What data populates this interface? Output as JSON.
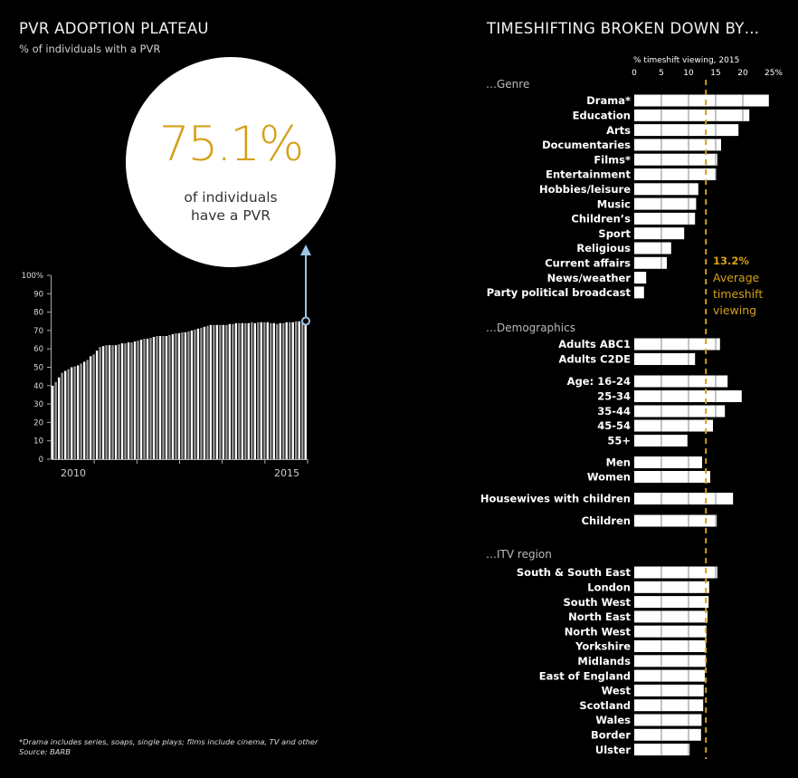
{
  "chart_data": [
    {
      "type": "bar",
      "title": "PVR ADOPTION PLATEAU",
      "subtitle": "% of individuals with a PVR",
      "ylabel": "% of individuals with a PVR",
      "ylim": [
        0,
        100
      ],
      "yticks": [
        "0",
        "10",
        "20",
        "30",
        "40",
        "50",
        "60",
        "70",
        "80",
        "90",
        "100%"
      ],
      "xtick_labels": [
        "2010",
        "2015"
      ],
      "grid": false,
      "values": [
        40,
        42,
        44.5,
        47,
        48,
        49,
        50,
        50.5,
        51,
        52,
        53,
        54,
        56,
        57,
        59,
        61,
        61.5,
        62,
        62,
        62,
        62,
        62.5,
        63,
        63,
        63.5,
        63.5,
        64,
        64.5,
        65,
        65.5,
        65.5,
        66,
        66.5,
        67,
        67,
        67,
        67,
        67.5,
        68,
        68.5,
        68.5,
        69,
        69,
        69.5,
        70,
        70.5,
        71,
        71.5,
        72,
        72.5,
        73,
        73,
        73,
        73,
        73,
        73,
        73.5,
        73.5,
        74,
        74,
        74,
        74,
        74,
        74.5,
        74,
        74.5,
        74.5,
        74.5,
        74.5,
        74,
        74,
        73.5,
        74,
        74,
        74.5,
        74.5,
        74.5,
        75,
        75,
        75,
        75.1
      ],
      "callout": {
        "value": "75.1%",
        "text_line1": "of individuals",
        "text_line2": "have a PVR"
      }
    },
    {
      "type": "bar",
      "orientation": "horizontal",
      "title": "TIMESHIFTING BROKEN DOWN BY…",
      "xlabel": "% timeshift viewing, 2015",
      "xlim": [
        0,
        25
      ],
      "xticks": [
        "0",
        "5",
        "10",
        "15",
        "20",
        "25%"
      ],
      "average": {
        "value": 13.2,
        "label": "13.2%",
        "text": [
          "Average",
          "timeshift",
          "viewing"
        ]
      },
      "groups": [
        {
          "name": "…Genre",
          "items": [
            {
              "label": "Drama*",
              "value": 24.8
            },
            {
              "label": "Education",
              "value": 21.2
            },
            {
              "label": "Arts",
              "value": 19.2
            },
            {
              "label": "Documentaries",
              "value": 16.0
            },
            {
              "label": "Films*",
              "value": 15.3
            },
            {
              "label": "Entertainment",
              "value": 15.1
            },
            {
              "label": "Hobbies/leisure",
              "value": 11.8
            },
            {
              "label": "Music",
              "value": 11.4
            },
            {
              "label": "Children’s",
              "value": 11.2
            },
            {
              "label": "Sport",
              "value": 9.2
            },
            {
              "label": "Religious",
              "value": 6.8
            },
            {
              "label": "Current affairs",
              "value": 6.0
            },
            {
              "label": "News/weather",
              "value": 2.2
            },
            {
              "label": "Party political broadcast",
              "value": 1.8
            }
          ]
        },
        {
          "name": "…Demographics",
          "items": [
            {
              "label": "Adults ABC1",
              "value": 15.8
            },
            {
              "label": "Adults C2DE",
              "value": 11.2
            },
            {
              "label": "Age: 16-24",
              "value": 17.2
            },
            {
              "label": "25-34",
              "value": 19.8
            },
            {
              "label": "35-44",
              "value": 16.7
            },
            {
              "label": "45-54",
              "value": 14.5
            },
            {
              "label": "55+",
              "value": 9.8
            },
            {
              "label": "Men",
              "value": 12.5
            },
            {
              "label": "Women",
              "value": 14.0
            },
            {
              "label": "Housewives with children",
              "value": 18.2
            },
            {
              "label": "Children",
              "value": 15.2
            }
          ]
        },
        {
          "name": "…ITV region",
          "items": [
            {
              "label": "South & South East",
              "value": 15.3
            },
            {
              "label": "London",
              "value": 13.8
            },
            {
              "label": "South West",
              "value": 13.7
            },
            {
              "label": "North East",
              "value": 13.5
            },
            {
              "label": "North West",
              "value": 13.3
            },
            {
              "label": "Yorkshire",
              "value": 13.2
            },
            {
              "label": "Midlands",
              "value": 13.2
            },
            {
              "label": "East of England",
              "value": 13.0
            },
            {
              "label": "West",
              "value": 12.8
            },
            {
              "label": "Scotland",
              "value": 12.7
            },
            {
              "label": "Wales",
              "value": 12.4
            },
            {
              "label": "Border",
              "value": 12.3
            },
            {
              "label": "Ulster",
              "value": 10.2
            }
          ]
        }
      ]
    }
  ],
  "footnote": {
    "line1": "*Drama includes series, soaps, single plays; films include cinema, TV and other",
    "line2": "Source: BARB"
  },
  "colors": {
    "accent": "#d4a017",
    "arrow": "#9dc3e6",
    "background": "#000000",
    "bar": "#ffffff"
  }
}
